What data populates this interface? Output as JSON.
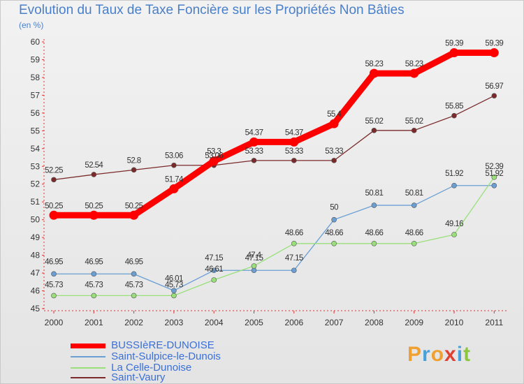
{
  "chart_data": {
    "type": "line",
    "title": "Evolution du Taux de Taxe Foncière sur les Propriétés Non Bâties",
    "ylabel": "(en %)",
    "categories": [
      "2000",
      "2001",
      "2002",
      "2003",
      "2004",
      "2005",
      "2006",
      "2007",
      "2008",
      "2009",
      "2010",
      "2011"
    ],
    "ylim": [
      45,
      60
    ],
    "yticks": [
      45,
      46,
      47,
      48,
      49,
      50,
      51,
      52,
      53,
      54,
      55,
      56,
      57,
      58,
      59,
      60
    ],
    "grid": false,
    "legend_position": "bottom-left",
    "series": [
      {
        "name": "BUSSIèRE-DUNOISE",
        "color": "#ff0000",
        "values": [
          50.25,
          50.25,
          50.25,
          51.74,
          53.3,
          54.37,
          54.37,
          55.4,
          58.23,
          58.23,
          59.39,
          59.39
        ],
        "labels": [
          "50.25",
          "50.25",
          "50.25",
          "51.74",
          "53.3",
          "54.37",
          "54.37",
          "55.4",
          "58.23",
          "58.23",
          "59.39",
          "59.39"
        ]
      },
      {
        "name": "Saint-Sulpice-le-Dunois",
        "color": "#6a9fd4",
        "values": [
          46.95,
          46.95,
          46.95,
          46.01,
          47.15,
          47.15,
          47.15,
          50,
          50.81,
          50.81,
          51.92,
          51.92
        ],
        "labels": [
          "46.95",
          "46.95",
          "46.95",
          "46.01",
          "47.15",
          "47.15",
          "47.15",
          "50",
          "50.81",
          "50.81",
          "51.92",
          "51.92"
        ]
      },
      {
        "name": "La Celle-Dunoise",
        "color": "#99e07a",
        "values": [
          45.73,
          45.73,
          45.73,
          45.73,
          46.61,
          47.4,
          48.66,
          48.66,
          48.66,
          48.66,
          49.16,
          52.39
        ],
        "labels": [
          "45.73",
          "45.73",
          "45.73",
          "45.73",
          "46.61",
          "47.4",
          "48.66",
          "48.66",
          "48.66",
          "48.66",
          "49.16",
          "52.39"
        ]
      },
      {
        "name": "Saint-Vaury",
        "color": "#7a2a2a",
        "values": [
          52.25,
          52.54,
          52.8,
          53.06,
          53.06,
          53.33,
          53.33,
          53.33,
          55.02,
          55.02,
          55.85,
          56.97
        ],
        "labels": [
          "52.25",
          "52.54",
          "52.8",
          "53.06",
          "53.06",
          "53.33",
          "53.33",
          "53.33",
          "55.02",
          "55.02",
          "55.85",
          "56.97"
        ]
      }
    ]
  },
  "logo": {
    "letters": [
      "P",
      "r",
      "o",
      "x",
      "i",
      "t"
    ],
    "text": "Proxiti"
  }
}
